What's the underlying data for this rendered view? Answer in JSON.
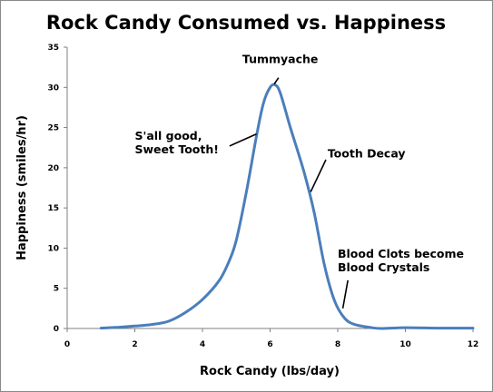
{
  "chart_data": {
    "type": "line",
    "title": "Rock Candy Consumed vs. Happiness",
    "xlabel": "Rock Candy (lbs/day)",
    "ylabel": "Happiness (smiles/hr)",
    "xlim": [
      0,
      12
    ],
    "ylim": [
      0,
      35
    ],
    "xticks": [
      0,
      2,
      4,
      6,
      8,
      10,
      12
    ],
    "yticks": [
      0,
      5,
      10,
      15,
      20,
      25,
      30,
      35
    ],
    "grid": false,
    "legend": "none",
    "series": [
      {
        "color": "#4a7ebb",
        "points": [
          [
            1.0,
            0.05
          ],
          [
            1.5,
            0.15
          ],
          [
            2.0,
            0.3
          ],
          [
            2.5,
            0.5
          ],
          [
            3.0,
            0.9
          ],
          [
            3.5,
            2.0
          ],
          [
            4.0,
            3.6
          ],
          [
            4.5,
            6.0
          ],
          [
            4.8,
            8.5
          ],
          [
            5.0,
            11.0
          ],
          [
            5.3,
            17.0
          ],
          [
            5.6,
            24.0
          ],
          [
            5.8,
            28.0
          ],
          [
            6.0,
            30.0
          ],
          [
            6.15,
            30.3
          ],
          [
            6.3,
            29.3
          ],
          [
            6.6,
            25.0
          ],
          [
            7.0,
            19.5
          ],
          [
            7.3,
            14.5
          ],
          [
            7.6,
            8.0
          ],
          [
            7.9,
            3.5
          ],
          [
            8.2,
            1.3
          ],
          [
            8.5,
            0.5
          ],
          [
            9.0,
            0.1
          ],
          [
            9.3,
            0.0
          ],
          [
            10.0,
            0.1
          ],
          [
            11.0,
            0.05
          ],
          [
            12.0,
            0.05
          ]
        ]
      }
    ],
    "annotations": [
      {
        "lines": [
          "Tummyache"
        ],
        "label_x": 6.3,
        "label_y": 33.0,
        "anchor": "middle",
        "arrow_from": [
          6.25,
          31.2
        ],
        "arrow_to": [
          6.12,
          30.4
        ]
      },
      {
        "lines": [
          "S'all good,",
          "Sweet Tooth!"
        ],
        "label_x": 2.0,
        "label_y": 23.5,
        "anchor": "start",
        "arrow_from": [
          4.8,
          22.7
        ],
        "arrow_to": [
          5.6,
          24.2
        ]
      },
      {
        "lines": [
          "Tooth Decay"
        ],
        "label_x": 7.7,
        "label_y": 21.3,
        "anchor": "start",
        "arrow_from": [
          7.65,
          21.0
        ],
        "arrow_to": [
          7.2,
          17.0
        ]
      },
      {
        "lines": [
          "Blood Clots become",
          "Blood Crystals"
        ],
        "label_x": 8.0,
        "label_y": 8.8,
        "anchor": "start",
        "arrow_from": [
          8.3,
          6.0
        ],
        "arrow_to": [
          8.15,
          2.5
        ]
      }
    ]
  }
}
